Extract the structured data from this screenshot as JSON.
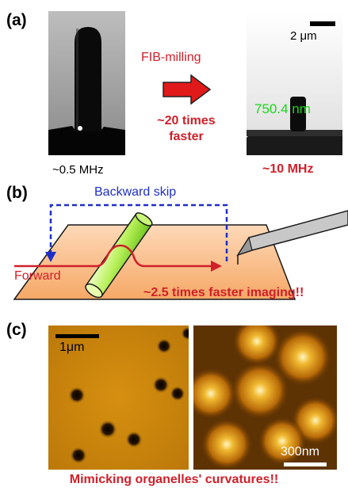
{
  "panel_a": {
    "label": "(a)",
    "left_caption": "~0.5 MHz",
    "arrow_top_text": "FIB-milling",
    "arrow_bottom_line1": "~20 times",
    "arrow_bottom_line2": "faster",
    "right_caption": "~10 MHz",
    "scale_bar_text": "2 μm",
    "measurement_text": "750.4 nm"
  },
  "panel_b": {
    "label": "(b)",
    "backward_text": "Backward skip",
    "forward_text": "Forward",
    "faster_text": "~2.5 times faster imaging!!"
  },
  "panel_c": {
    "label": "(c)",
    "left_scale_text": "1μm",
    "right_scale_text": "300nm",
    "caption": "Mimicking organelles' curvatures!!"
  },
  "colors": {
    "red": "#d0202a",
    "blue": "#1e2fc8",
    "green": "#18d818",
    "afm_orange": "#c8860c"
  }
}
